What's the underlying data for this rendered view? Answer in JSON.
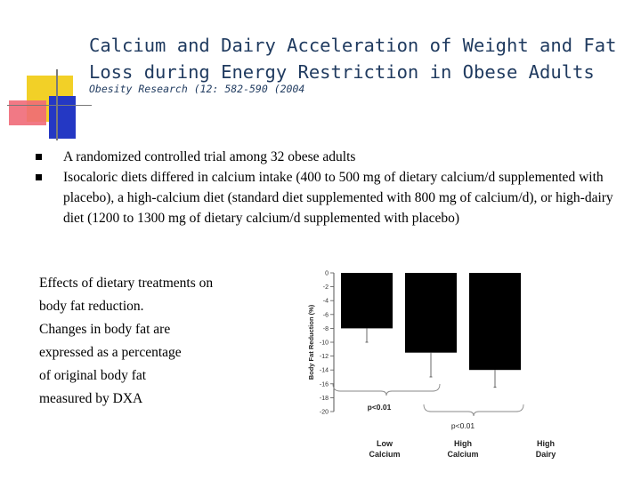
{
  "slide": {
    "title_lines": [
      "Calcium and Dairy Acceleration of Weight and Fat",
      "Loss during Energy Restriction in Obese Adults"
    ],
    "subtitle": "Obesity Research (12: 582-590 (2004",
    "bullets": [
      "A randomized controlled trial among 32 obese adults",
      "Isocaloric diets differed in calcium intake (400 to 500 mg of dietary calcium/d supplemented with placebo), a high-calcium diet (standard diet supplemented with 800 mg of calcium/d), or high-dairy diet (1200 to 1300 mg of dietary calcium/d supplemented with placebo)"
    ],
    "caption_lines": [
      "Effects of dietary treatments on",
      "body fat reduction.",
      "Changes in body fat are",
      "expressed as a percentage",
      "of original body fat",
      "measured by DXA"
    ],
    "colors": {
      "title": "#1f3a5f",
      "deco_yellow": "#f2d027",
      "deco_blue": "#2438c4",
      "deco_red": "#f06a78",
      "bars": "#000000"
    }
  },
  "chart_data": {
    "type": "bar",
    "categories": [
      [
        "Low",
        "Calcium"
      ],
      [
        "High",
        "Calcium"
      ],
      [
        "High",
        "Dairy"
      ]
    ],
    "values": [
      -8.0,
      -11.5,
      -14.0
    ],
    "error_low": [
      -10.0,
      -15.0,
      -16.5
    ],
    "ylabel": "Body Fat Reduction (%)",
    "ylim": [
      -20,
      0
    ],
    "yticks": [
      0,
      -2,
      -4,
      -6,
      -8,
      -10,
      -12,
      -14,
      -16,
      -18,
      -20
    ],
    "annotations": [
      {
        "label": "p<0.01",
        "from": 0,
        "to": 1
      },
      {
        "label": "p<0.01",
        "from": 1,
        "to": 2
      }
    ]
  }
}
